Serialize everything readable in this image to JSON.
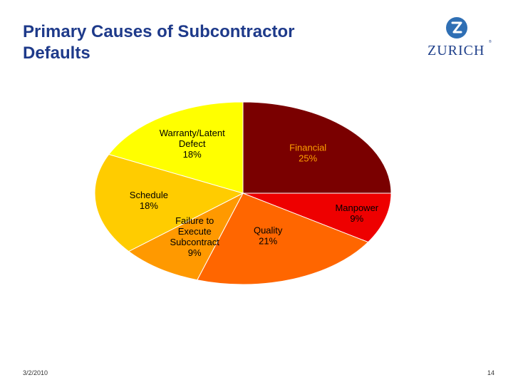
{
  "slide": {
    "title_line1": "Primary Causes of Subcontractor",
    "title_line2": "Defaults",
    "date": "3/2/2010",
    "page_number": "14"
  },
  "logo": {
    "mark": "Z",
    "wordmark": "ZURICH",
    "registered": "®"
  },
  "chart_data": {
    "type": "pie",
    "title": "",
    "slices": [
      {
        "label_lines": [
          "Financial",
          "25%"
        ],
        "value": 25,
        "color": "#7a0000",
        "text_color": "#ffa000"
      },
      {
        "label_lines": [
          "Manpower",
          "9%"
        ],
        "value": 9,
        "color": "#ee0000",
        "text_color": "#000000"
      },
      {
        "label_lines": [
          "Quality",
          "21%"
        ],
        "value": 21,
        "color": "#ff6600",
        "text_color": "#000000"
      },
      {
        "label_lines": [
          "Failure to",
          "Execute",
          "Subcontract",
          "9%"
        ],
        "value": 9,
        "color": "#ff9900",
        "text_color": "#000000"
      },
      {
        "label_lines": [
          "Schedule",
          "18%"
        ],
        "value": 18,
        "color": "#ffcc00",
        "text_color": "#000000"
      },
      {
        "label_lines": [
          "Warranty/Latent",
          "Defect",
          "18%"
        ],
        "value": 18,
        "color": "#ffff00",
        "text_color": "#000000"
      }
    ]
  }
}
